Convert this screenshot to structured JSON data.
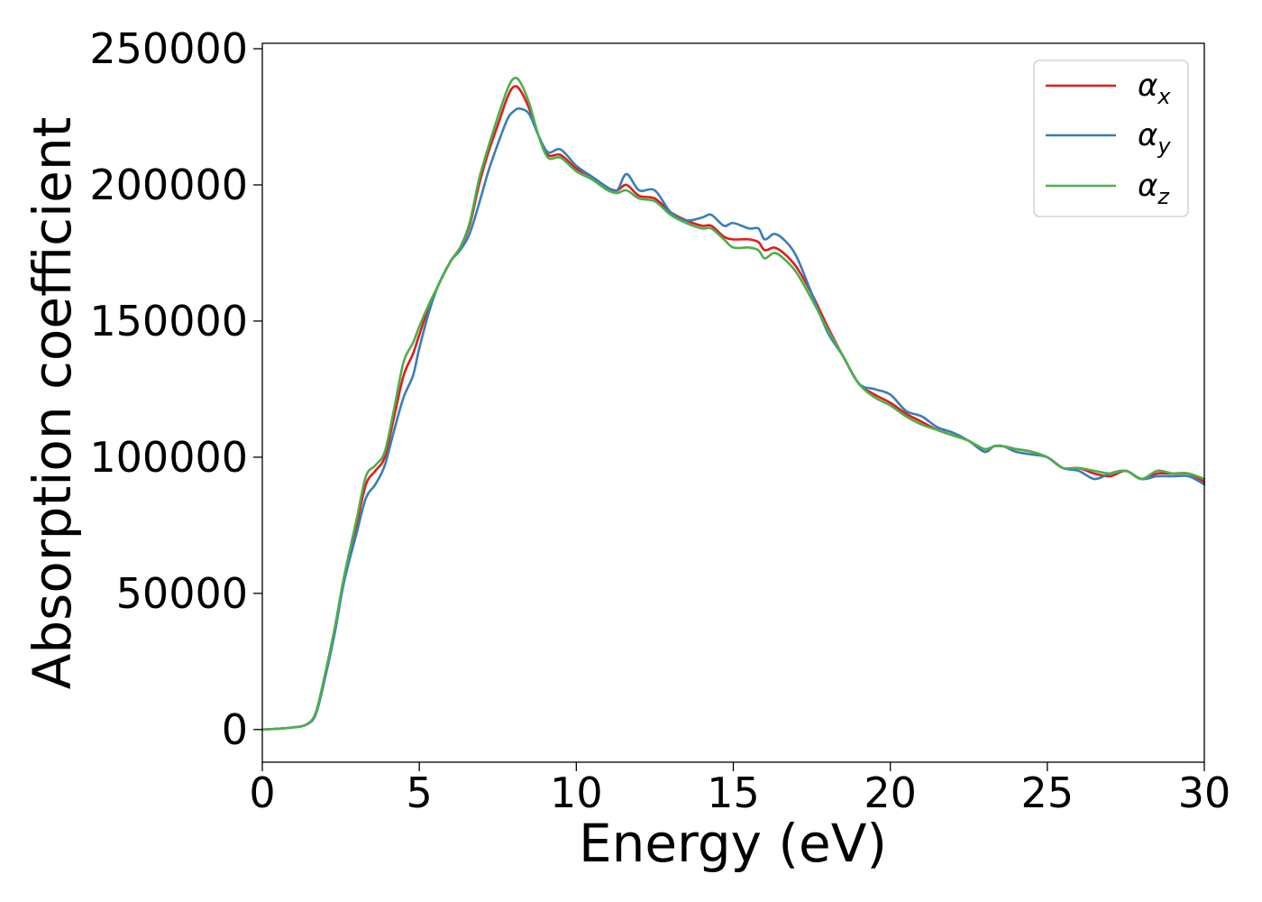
{
  "chart_data": {
    "type": "line",
    "xlabel": "Energy (eV)",
    "ylabel": "Absorption coefficient",
    "xlim": [
      0,
      30
    ],
    "ylim": [
      -12000,
      252000
    ],
    "xticks": [
      "0",
      "5",
      "10",
      "15",
      "20",
      "25",
      "30"
    ],
    "yticks": [
      "0",
      "50000",
      "100000",
      "150000",
      "200000",
      "250000"
    ],
    "grid": false,
    "legend_position": "top-right",
    "colors": {
      "x": "#e41a1c",
      "y": "#377eb8",
      "z": "#4daf4a"
    },
    "series": [
      {
        "name": "αx",
        "legend_symbol": "α",
        "legend_sub": "x",
        "color": "#e41a1c",
        "x": [
          0,
          0.5,
          1,
          1.4,
          1.7,
          2,
          2.3,
          2.6,
          3,
          3.3,
          3.6,
          3.9,
          4.2,
          4.5,
          4.8,
          5,
          5.3,
          5.6,
          6,
          6.3,
          6.6,
          6.9,
          7.2,
          7.5,
          7.8,
          8,
          8.2,
          8.5,
          8.8,
          9.1,
          9.5,
          10,
          10.5,
          11,
          11.3,
          11.6,
          12,
          12.5,
          13,
          13.5,
          14,
          14.3,
          14.7,
          15,
          15.5,
          15.8,
          16,
          16.3,
          16.6,
          17,
          17.5,
          18,
          18.5,
          19,
          19.5,
          20,
          20.5,
          21,
          21.5,
          22,
          22.5,
          23,
          23.3,
          23.6,
          24,
          24.5,
          25,
          25.5,
          26,
          26.5,
          27,
          27.5,
          28,
          28.5,
          29,
          29.5,
          30
        ],
        "values": [
          0,
          300,
          800,
          1800,
          6000,
          20000,
          36000,
          55000,
          75000,
          90000,
          95000,
          100000,
          115000,
          130000,
          138000,
          145000,
          155000,
          163000,
          172000,
          177000,
          185000,
          200000,
          212000,
          222000,
          232000,
          236000,
          235000,
          228000,
          218000,
          211000,
          211000,
          206000,
          203000,
          199000,
          198000,
          200000,
          196000,
          195000,
          190000,
          187000,
          185000,
          185000,
          181000,
          180000,
          180000,
          179000,
          176000,
          177000,
          175000,
          170000,
          160000,
          148000,
          137000,
          127000,
          123000,
          120000,
          116000,
          113000,
          110000,
          108000,
          106000,
          102000,
          104000,
          104000,
          103000,
          102000,
          100000,
          96000,
          96000,
          94000,
          93000,
          95000,
          92000,
          94000,
          94000,
          94000,
          91000
        ]
      },
      {
        "name": "αy",
        "legend_symbol": "α",
        "legend_sub": "y",
        "color": "#377eb8",
        "x": [
          0,
          0.5,
          1,
          1.4,
          1.7,
          2,
          2.3,
          2.6,
          3,
          3.3,
          3.6,
          3.9,
          4.2,
          4.5,
          4.8,
          5,
          5.3,
          5.6,
          6,
          6.3,
          6.6,
          6.9,
          7.2,
          7.5,
          7.8,
          8,
          8.2,
          8.5,
          8.8,
          9.1,
          9.5,
          10,
          10.5,
          11,
          11.3,
          11.6,
          12,
          12.5,
          13,
          13.5,
          14,
          14.3,
          14.7,
          15,
          15.5,
          15.8,
          16,
          16.3,
          16.6,
          17,
          17.5,
          18,
          18.5,
          19,
          19.5,
          20,
          20.5,
          21,
          21.5,
          22,
          22.5,
          23,
          23.3,
          23.6,
          24,
          24.5,
          25,
          25.5,
          26,
          26.5,
          27,
          27.5,
          28,
          28.5,
          29,
          29.5,
          30
        ],
        "values": [
          0,
          300,
          800,
          1800,
          5500,
          19000,
          35000,
          54000,
          72000,
          85000,
          90000,
          97000,
          110000,
          122000,
          130000,
          140000,
          153000,
          163000,
          172000,
          176000,
          182000,
          193000,
          205000,
          215000,
          224000,
          227000,
          228000,
          226000,
          218000,
          212000,
          213000,
          207000,
          203000,
          199000,
          198000,
          204000,
          198000,
          198000,
          190000,
          187000,
          188000,
          189000,
          185000,
          186000,
          184000,
          184000,
          180000,
          182000,
          180000,
          174000,
          160000,
          146000,
          137000,
          127000,
          125000,
          123000,
          117000,
          115000,
          111000,
          109000,
          106000,
          102000,
          104000,
          104000,
          102000,
          101000,
          100000,
          96000,
          95000,
          92000,
          94000,
          95000,
          92000,
          93000,
          93000,
          93000,
          90000
        ]
      },
      {
        "name": "αz",
        "legend_symbol": "α",
        "legend_sub": "z",
        "color": "#4daf4a",
        "x": [
          0,
          0.5,
          1,
          1.4,
          1.7,
          2,
          2.3,
          2.6,
          3,
          3.3,
          3.6,
          3.9,
          4.2,
          4.5,
          4.8,
          5,
          5.3,
          5.6,
          6,
          6.3,
          6.6,
          6.9,
          7.2,
          7.5,
          7.8,
          8,
          8.2,
          8.5,
          8.8,
          9.1,
          9.5,
          10,
          10.5,
          11,
          11.3,
          11.6,
          12,
          12.5,
          13,
          13.5,
          14,
          14.3,
          14.7,
          15,
          15.5,
          15.8,
          16,
          16.3,
          16.6,
          17,
          17.5,
          18,
          18.5,
          19,
          19.5,
          20,
          20.5,
          21,
          21.5,
          22,
          22.5,
          23,
          23.3,
          23.6,
          24,
          24.5,
          25,
          25.5,
          26,
          26.5,
          27,
          27.5,
          28,
          28.5,
          29,
          29.5,
          30
        ],
        "values": [
          0,
          300,
          800,
          1800,
          6200,
          20500,
          37000,
          56000,
          77000,
          93000,
          97000,
          102000,
          118000,
          135000,
          142000,
          148000,
          156000,
          163000,
          172000,
          177000,
          186000,
          202000,
          214000,
          225000,
          235000,
          239000,
          238000,
          230000,
          218000,
          210000,
          210000,
          205000,
          202000,
          198000,
          197000,
          198000,
          195000,
          194000,
          189000,
          186000,
          184000,
          184000,
          180000,
          177000,
          177000,
          176000,
          173000,
          175000,
          173000,
          168000,
          158000,
          147000,
          137000,
          127000,
          122000,
          119000,
          115000,
          112000,
          110000,
          108000,
          106000,
          103000,
          104000,
          104000,
          103000,
          102000,
          100000,
          96000,
          96000,
          95000,
          94000,
          95000,
          92000,
          95000,
          94000,
          94000,
          92000
        ]
      }
    ]
  }
}
